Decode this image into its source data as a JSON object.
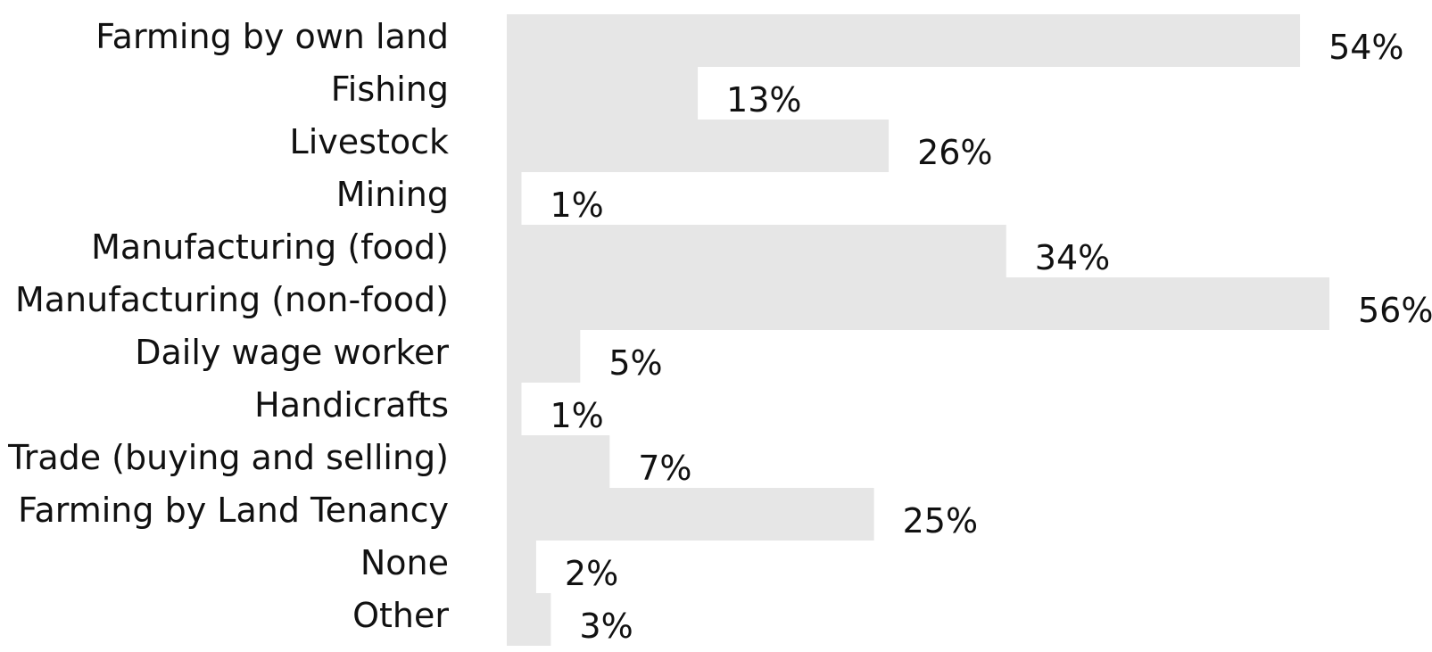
{
  "chart_data": {
    "type": "bar",
    "orientation": "horizontal",
    "categories": [
      "Farming by own land",
      "Fishing",
      "Livestock",
      "Mining",
      "Manufacturing (food)",
      "Manufacturing (non-food)",
      "Daily wage worker",
      "Handicrafts",
      "Trade (buying and selling)",
      "Farming by Land Tenancy",
      "None",
      "Other"
    ],
    "values": [
      54,
      13,
      26,
      1,
      34,
      56,
      5,
      1,
      7,
      25,
      2,
      3
    ],
    "data_labels": [
      "54%",
      "13%",
      "26%",
      "1%",
      "34%",
      "56%",
      "5%",
      "1%",
      "7%",
      "25%",
      "2%",
      "3%"
    ],
    "value_unit": "%",
    "xlim": [
      0,
      56
    ],
    "bar_color": "#e6e6e6",
    "grid": false,
    "legend": "none"
  }
}
